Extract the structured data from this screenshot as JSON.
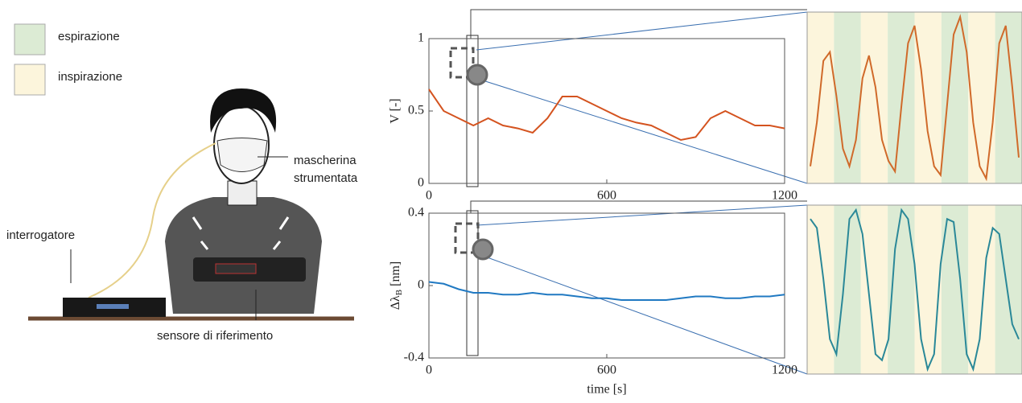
{
  "legend": [
    {
      "label": "espirazione",
      "color": "#dcebd4"
    },
    {
      "label": "inspirazione",
      "color": "#fcf5dc"
    }
  ],
  "illustration": {
    "interrogator": "interrogatore",
    "mask": [
      "mascherina",
      "strumentata"
    ],
    "reference": "sensore di riferimento"
  },
  "chart_data": [
    {
      "type": "line",
      "ylabel": "V [-]",
      "xlim": [
        0,
        1200
      ],
      "xticks": [
        0,
        600,
        1200
      ],
      "ylim": [
        0,
        1
      ],
      "yticks": [
        0,
        0.5,
        1
      ],
      "x": [
        0,
        50,
        100,
        150,
        200,
        250,
        300,
        350,
        400,
        450,
        500,
        550,
        600,
        650,
        700,
        750,
        800,
        850,
        900,
        950,
        1000,
        1050,
        1100,
        1150,
        1200
      ],
      "series": [
        {
          "color": "#d4531f",
          "values": [
            0.65,
            0.5,
            0.45,
            0.4,
            0.45,
            0.4,
            0.38,
            0.35,
            0.45,
            0.6,
            0.6,
            0.55,
            0.5,
            0.45,
            0.42,
            0.4,
            0.35,
            0.3,
            0.32,
            0.45,
            0.5,
            0.45,
            0.4,
            0.4,
            0.38
          ]
        }
      ]
    },
    {
      "type": "line",
      "ylabel": "Δλ",
      "ylabel_sub": "B",
      "ylabel_unit": "[nm]",
      "xlabel": "time [s]",
      "xlim": [
        0,
        1200
      ],
      "xticks": [
        0,
        600,
        1200
      ],
      "ylim": [
        -0.4,
        0.4
      ],
      "yticks": [
        -0.4,
        0,
        0.4
      ],
      "x": [
        0,
        50,
        100,
        150,
        200,
        250,
        300,
        350,
        400,
        450,
        500,
        550,
        600,
        650,
        700,
        750,
        800,
        850,
        900,
        950,
        1000,
        1050,
        1100,
        1150,
        1200
      ],
      "series": [
        {
          "color": "#2079c2",
          "values": [
            0.02,
            0.01,
            -0.02,
            -0.04,
            -0.04,
            -0.05,
            -0.05,
            -0.04,
            -0.05,
            -0.05,
            -0.06,
            -0.07,
            -0.07,
            -0.08,
            -0.08,
            -0.08,
            -0.08,
            -0.07,
            -0.06,
            -0.06,
            -0.07,
            -0.07,
            -0.06,
            -0.06,
            -0.05
          ]
        }
      ]
    }
  ],
  "zoom": [
    {
      "color": "#d06a2a",
      "values": [
        0.15,
        0.4,
        0.75,
        0.8,
        0.55,
        0.25,
        0.15,
        0.3,
        0.65,
        0.78,
        0.6,
        0.3,
        0.18,
        0.12,
        0.5,
        0.85,
        0.95,
        0.7,
        0.35,
        0.15,
        0.1,
        0.5,
        0.9,
        1.0,
        0.8,
        0.4,
        0.15,
        0.08,
        0.4,
        0.85,
        0.95,
        0.6,
        0.2
      ]
    },
    {
      "color": "#2a8898",
      "values": [
        0.75,
        0.72,
        0.55,
        0.35,
        0.3,
        0.5,
        0.75,
        0.78,
        0.7,
        0.5,
        0.3,
        0.28,
        0.35,
        0.65,
        0.78,
        0.75,
        0.6,
        0.35,
        0.25,
        0.3,
        0.6,
        0.75,
        0.74,
        0.55,
        0.3,
        0.25,
        0.35,
        0.62,
        0.72,
        0.7,
        0.55,
        0.4,
        0.35
      ]
    }
  ]
}
